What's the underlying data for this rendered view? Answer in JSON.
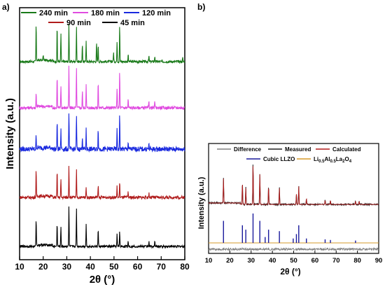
{
  "panel_labels": {
    "a": "a)",
    "b": "b)"
  },
  "chart_data": [
    {
      "type": "line",
      "panel": "a)",
      "xlabel": "2θ (°)",
      "ylabel": "Intensity (a.u.)",
      "xlim": [
        10,
        80
      ],
      "xticks": [
        10,
        20,
        30,
        40,
        50,
        60,
        70,
        80
      ],
      "legend_placement": "top",
      "series": [
        {
          "name": "240 min",
          "color": "#1a7a1a",
          "peaks": [
            [
              17.0,
              1.0
            ],
            [
              20.0,
              0.15
            ],
            [
              25.9,
              0.95
            ],
            [
              27.5,
              0.75
            ],
            [
              30.9,
              1.0
            ],
            [
              34.1,
              0.95
            ],
            [
              36.6,
              0.45
            ],
            [
              38.2,
              0.55
            ],
            [
              42.6,
              0.5
            ],
            [
              43.3,
              0.45
            ],
            [
              49.8,
              0.25
            ],
            [
              51.3,
              0.55
            ],
            [
              52.4,
              1.0
            ],
            [
              56.0,
              0.2
            ],
            [
              64.8,
              0.15
            ],
            [
              67.3,
              0.15
            ],
            [
              79.1,
              0.1
            ]
          ]
        },
        {
          "name": "180 min",
          "color": "#e04be0",
          "peaks": [
            [
              17.0,
              0.35
            ],
            [
              25.9,
              0.8
            ],
            [
              27.5,
              0.55
            ],
            [
              30.9,
              1.0
            ],
            [
              34.1,
              0.95
            ],
            [
              36.6,
              0.4
            ],
            [
              38.2,
              0.55
            ],
            [
              43.3,
              0.65
            ],
            [
              51.3,
              0.5
            ],
            [
              52.4,
              0.9
            ],
            [
              56.0,
              0.2
            ],
            [
              64.8,
              0.15
            ],
            [
              67.3,
              0.15
            ]
          ]
        },
        {
          "name": "120 min",
          "color": "#1a2adf",
          "peaks": [
            [
              17.0,
              0.35
            ],
            [
              25.9,
              0.75
            ],
            [
              27.5,
              0.5
            ],
            [
              30.9,
              1.0
            ],
            [
              34.1,
              0.9
            ],
            [
              36.6,
              0.35
            ],
            [
              38.2,
              0.5
            ],
            [
              43.3,
              0.55
            ],
            [
              51.3,
              0.5
            ],
            [
              52.4,
              0.9
            ],
            [
              56.0,
              0.2
            ],
            [
              64.8,
              0.12
            ]
          ]
        },
        {
          "name": "90 min",
          "color": "#b01c1c",
          "peaks": [
            [
              17.0,
              0.75
            ],
            [
              25.9,
              0.75
            ],
            [
              27.5,
              0.5
            ],
            [
              30.9,
              0.9
            ],
            [
              34.1,
              0.75
            ],
            [
              38.2,
              0.3
            ],
            [
              43.3,
              0.35
            ],
            [
              51.3,
              0.3
            ],
            [
              52.4,
              0.45
            ],
            [
              56.0,
              0.15
            ],
            [
              64.8,
              0.12
            ]
          ]
        },
        {
          "name": "45 min",
          "color": "#000000",
          "peaks": [
            [
              17.0,
              0.7
            ],
            [
              25.9,
              0.6
            ],
            [
              27.5,
              0.5
            ],
            [
              30.9,
              1.0
            ],
            [
              34.1,
              0.95
            ],
            [
              38.2,
              0.55
            ],
            [
              43.3,
              0.45
            ],
            [
              51.3,
              0.3
            ],
            [
              52.4,
              0.4
            ],
            [
              56.0,
              0.15
            ],
            [
              64.8,
              0.12
            ],
            [
              67.3,
              0.12
            ]
          ]
        }
      ]
    },
    {
      "type": "line",
      "panel": "b)",
      "xlabel": "2θ (°)",
      "ylabel": "Intensity (a.u.)",
      "xlim": [
        10,
        90
      ],
      "xticks": [
        10,
        20,
        30,
        40,
        50,
        60,
        70,
        80,
        90
      ],
      "legend_placement": "top",
      "legend": {
        "difference": "Difference",
        "measured": "Measured",
        "calculated": "Calculated",
        "cubic_llzo": "Cubic LLZO",
        "li_al_la_o": "Li0.5Al0.5La2O4"
      },
      "colors": {
        "difference": "#808080",
        "measured": "#222222",
        "calculated": "#b01c1c",
        "cubic_llzo": "#1a1a9c",
        "li_al_la_o": "#d69a2a"
      },
      "measured_peaks": [
        [
          17.0,
          0.6
        ],
        [
          25.9,
          0.55
        ],
        [
          27.5,
          0.4
        ],
        [
          30.9,
          1.0
        ],
        [
          34.1,
          0.75
        ],
        [
          38.2,
          0.45
        ],
        [
          43.3,
          0.4
        ],
        [
          51.3,
          0.25
        ],
        [
          52.4,
          0.45
        ],
        [
          56.0,
          0.15
        ],
        [
          64.8,
          0.1
        ],
        [
          67.3,
          0.1
        ],
        [
          79.1,
          0.08
        ],
        [
          80.8,
          0.08
        ]
      ],
      "cubic_llzo_reflections": [
        [
          17.0,
          0.75
        ],
        [
          25.9,
          0.6
        ],
        [
          27.5,
          0.45
        ],
        [
          30.9,
          1.0
        ],
        [
          34.1,
          0.75
        ],
        [
          36.6,
          0.2
        ],
        [
          38.2,
          0.45
        ],
        [
          43.3,
          0.4
        ],
        [
          49.8,
          0.15
        ],
        [
          51.3,
          0.3
        ],
        [
          52.4,
          0.6
        ],
        [
          56.0,
          0.15
        ],
        [
          64.8,
          0.12
        ],
        [
          67.3,
          0.1
        ],
        [
          79.1,
          0.08
        ]
      ]
    }
  ]
}
